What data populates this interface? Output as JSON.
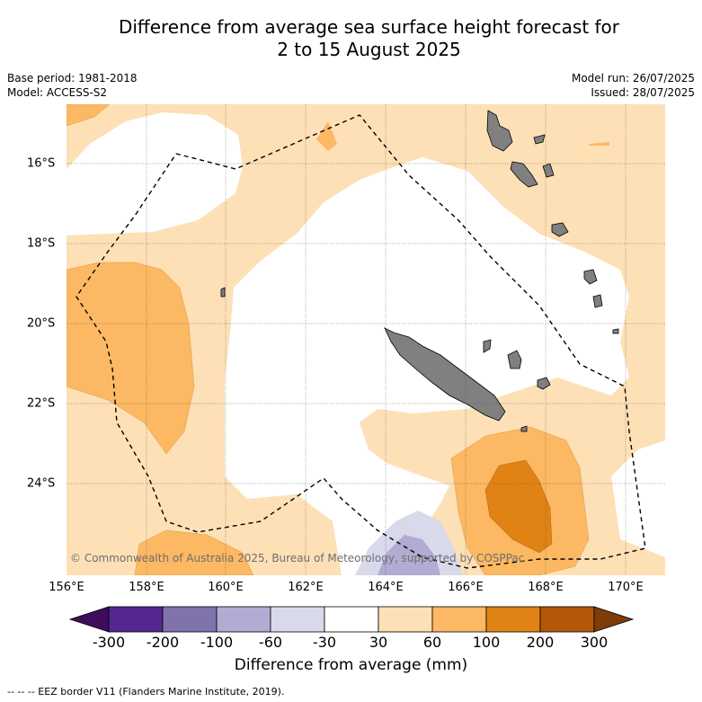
{
  "title_line1": "Difference from average sea surface height forecast for",
  "title_line2": "2 to 15 August 2025",
  "base_period": "Base period: 1981-2018",
  "model": "Model: ACCESS-S2",
  "model_run": "Model run: 26/07/2025",
  "issued": "Issued: 28/07/2025",
  "copyright": "© Commonwealth of Australia 2025, Bureau of Meteorology, supported by COSPPac",
  "footer": "--  --  -- EEZ border V11 (Flanders Marine Institute, 2019).",
  "axes": {
    "lon_ticks": [
      "156°E",
      "158°E",
      "160°E",
      "162°E",
      "164°E",
      "166°E",
      "168°E",
      "170°E"
    ],
    "lat_ticks": [
      "16°S",
      "18°S",
      "20°S",
      "22°S",
      "24°S"
    ]
  },
  "colorbar": {
    "label": "Difference from average (mm)",
    "ticks": [
      "-300",
      "-200",
      "-100",
      "-60",
      "-30",
      "30",
      "60",
      "100",
      "200",
      "300"
    ],
    "colors": [
      "#3f0d5c",
      "#54278f",
      "#8073ac",
      "#b2abd2",
      "#d8daeb",
      "#ffffff",
      "#fee0b6",
      "#fdb863",
      "#e08214",
      "#b35806",
      "#7f3b08"
    ]
  },
  "land_color": "#808080"
}
